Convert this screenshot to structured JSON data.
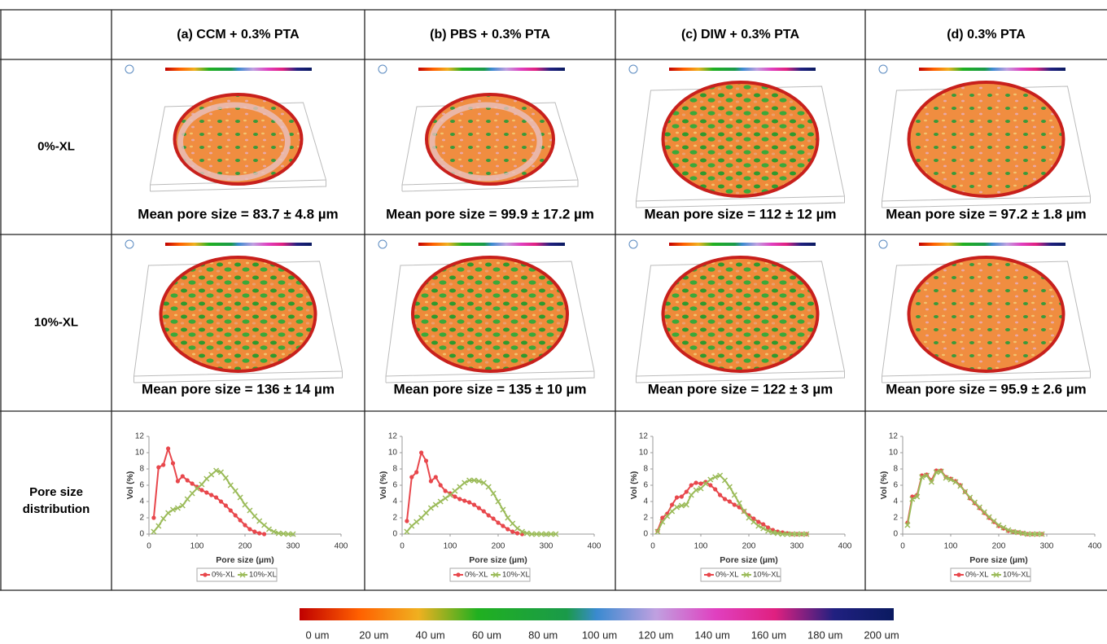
{
  "table": {
    "headers": [
      "(a) CCM + 0.3% PTA",
      "(b) PBS + 0.3% PTA",
      "(c) DIW + 0.3% PTA",
      "(d) 0.3% PTA"
    ],
    "rows": [
      {
        "label": "0%-XL",
        "cells": [
          "Mean pore size = 83.7 ± 4.8 µm",
          "Mean pore size = 99.9 ± 17.2 µm",
          "Mean pore size = 112 ± 12 µm",
          "Mean pore size = 97.2 ± 1.8 µm"
        ]
      },
      {
        "label": "10%-XL",
        "cells": [
          "Mean pore size = 136 ± 14 µm",
          "Mean pore size = 135 ± 10 µm",
          "Mean pore size = 122 ± 3 µm",
          "Mean pore size = 95.9 ± 2.6 µm"
        ]
      },
      {
        "label": [
          "Pore size",
          "distribution"
        ]
      }
    ]
  },
  "chart_data": [
    {
      "type": "line",
      "xlabel": "Pore size (µm)",
      "ylabel": "Vol (%)",
      "xlim": [
        0,
        400
      ],
      "ylim": [
        0,
        12
      ],
      "xticks": [
        0,
        100,
        200,
        300,
        400
      ],
      "yticks": [
        0,
        2,
        4,
        6,
        8,
        10,
        12
      ],
      "legend": "bottom",
      "x": [
        10,
        20,
        30,
        40,
        50,
        60,
        70,
        80,
        90,
        100,
        110,
        120,
        130,
        140,
        150,
        160,
        170,
        180,
        190,
        200,
        210,
        220,
        230,
        240,
        250,
        260,
        270,
        280,
        290,
        300
      ],
      "series": [
        {
          "name": "0%-XL",
          "color": "#e8474c",
          "marker": "circle",
          "values": [
            2,
            8.2,
            8.5,
            10.5,
            8.7,
            6.5,
            7.1,
            6.6,
            6.2,
            5.8,
            5.4,
            5.1,
            4.8,
            4.5,
            4.0,
            3.5,
            2.9,
            2.3,
            1.7,
            1.1,
            0.6,
            0.3,
            0.1,
            0,
            null,
            null,
            null,
            null,
            null,
            null
          ]
        },
        {
          "name": "10%-XL",
          "color": "#9bbb59",
          "marker": "cross",
          "values": [
            0.3,
            1.0,
            1.9,
            2.6,
            3.0,
            3.2,
            3.5,
            4.3,
            5.0,
            5.6,
            6.1,
            6.8,
            7.3,
            7.8,
            7.6,
            6.9,
            6.0,
            5.3,
            4.5,
            3.6,
            2.9,
            2.2,
            1.6,
            1.1,
            0.6,
            0.3,
            0.1,
            0.05,
            0,
            0
          ]
        }
      ]
    },
    {
      "type": "line",
      "xlabel": "Pore size (µm)",
      "ylabel": "Vol (%)",
      "xlim": [
        0,
        400
      ],
      "ylim": [
        0,
        12
      ],
      "xticks": [
        0,
        100,
        200,
        300,
        400
      ],
      "yticks": [
        0,
        2,
        4,
        6,
        8,
        10,
        12
      ],
      "legend": "bottom",
      "x": [
        10,
        20,
        30,
        40,
        50,
        60,
        70,
        80,
        90,
        100,
        110,
        120,
        130,
        140,
        150,
        160,
        170,
        180,
        190,
        200,
        210,
        220,
        230,
        240,
        250,
        260,
        270,
        280,
        290,
        300,
        310,
        320
      ],
      "series": [
        {
          "name": "0%-XL",
          "color": "#e8474c",
          "marker": "circle",
          "values": [
            1.6,
            7.0,
            7.6,
            10.0,
            9.0,
            6.5,
            7.0,
            6.0,
            5.3,
            5.0,
            4.6,
            4.3,
            4.1,
            3.9,
            3.6,
            3.2,
            2.8,
            2.3,
            1.9,
            1.4,
            1.0,
            0.6,
            0.3,
            0.1,
            0,
            null,
            null,
            null,
            null,
            null,
            null,
            null
          ]
        },
        {
          "name": "10%-XL",
          "color": "#9bbb59",
          "marker": "cross",
          "values": [
            0.3,
            1.0,
            1.5,
            2.0,
            2.6,
            3.2,
            3.6,
            4.0,
            4.4,
            4.8,
            5.3,
            5.8,
            6.3,
            6.6,
            6.6,
            6.5,
            6.3,
            5.8,
            5.0,
            4.0,
            3.0,
            2.0,
            1.3,
            0.7,
            0.3,
            0.1,
            0,
            0,
            0,
            0,
            0,
            0
          ]
        }
      ]
    },
    {
      "type": "line",
      "xlabel": "Pore size (µm)",
      "ylabel": "Vol (%)",
      "xlim": [
        0,
        400
      ],
      "ylim": [
        0,
        12
      ],
      "xticks": [
        0,
        100,
        200,
        300,
        400
      ],
      "yticks": [
        0,
        2,
        4,
        6,
        8,
        10,
        12
      ],
      "legend": "bottom",
      "x": [
        10,
        20,
        30,
        40,
        50,
        60,
        70,
        80,
        90,
        100,
        110,
        120,
        130,
        140,
        150,
        160,
        170,
        180,
        190,
        200,
        210,
        220,
        230,
        240,
        250,
        260,
        270,
        280,
        290,
        300,
        310,
        320
      ],
      "series": [
        {
          "name": "0%-XL",
          "color": "#e8474c",
          "marker": "circle",
          "values": [
            0.4,
            2.0,
            2.5,
            3.6,
            4.5,
            4.6,
            5.2,
            6.0,
            6.3,
            6.2,
            6.4,
            6.0,
            5.5,
            4.8,
            4.3,
            4.0,
            3.6,
            3.3,
            2.8,
            2.3,
            1.9,
            1.5,
            1.2,
            0.8,
            0.5,
            0.3,
            0.2,
            0.1,
            0,
            0,
            0,
            0
          ]
        },
        {
          "name": "10%-XL",
          "color": "#9bbb59",
          "marker": "cross",
          "values": [
            0.3,
            1.5,
            2.2,
            2.8,
            3.3,
            3.5,
            3.6,
            4.8,
            5.4,
            5.6,
            6.2,
            6.7,
            7.0,
            7.2,
            6.6,
            5.8,
            4.8,
            3.8,
            2.8,
            2.0,
            1.5,
            1.0,
            0.7,
            0.4,
            0.2,
            0.1,
            0,
            0,
            0,
            0,
            0,
            0
          ]
        }
      ]
    },
    {
      "type": "line",
      "xlabel": "Pore size (µm)",
      "ylabel": "Vol (%)",
      "xlim": [
        0,
        400
      ],
      "ylim": [
        0,
        12
      ],
      "xticks": [
        0,
        100,
        200,
        300,
        400
      ],
      "yticks": [
        0,
        2,
        4,
        6,
        8,
        10,
        12
      ],
      "legend": "bottom",
      "x": [
        10,
        20,
        30,
        40,
        50,
        60,
        70,
        80,
        90,
        100,
        110,
        120,
        130,
        140,
        150,
        160,
        170,
        180,
        190,
        200,
        210,
        220,
        230,
        240,
        250,
        260,
        270,
        280,
        290
      ],
      "series": [
        {
          "name": "0%-XL",
          "color": "#e8474c",
          "marker": "circle",
          "values": [
            1.4,
            4.6,
            4.8,
            7.2,
            7.3,
            6.6,
            7.8,
            7.8,
            7.0,
            6.8,
            6.5,
            6.0,
            5.2,
            4.4,
            3.8,
            3.2,
            2.6,
            2.0,
            1.5,
            1.0,
            0.7,
            0.4,
            0.3,
            0.2,
            0.1,
            0,
            0,
            0,
            0
          ]
        },
        {
          "name": "10%-XL",
          "color": "#9bbb59",
          "marker": "cross",
          "values": [
            1.1,
            4.3,
            4.6,
            7.0,
            7.2,
            6.4,
            7.6,
            7.7,
            6.9,
            6.7,
            6.4,
            5.9,
            5.2,
            4.5,
            3.9,
            3.3,
            2.7,
            2.1,
            1.6,
            1.1,
            0.8,
            0.5,
            0.3,
            0.2,
            0.1,
            0,
            0,
            0,
            0
          ]
        }
      ]
    }
  ],
  "colorbar": {
    "labels": [
      "0 um",
      "20 um",
      "40 um",
      "60 um",
      "80 um",
      "100 um",
      "120 um",
      "140 um",
      "160 um",
      "180 um",
      "200 um"
    ]
  }
}
